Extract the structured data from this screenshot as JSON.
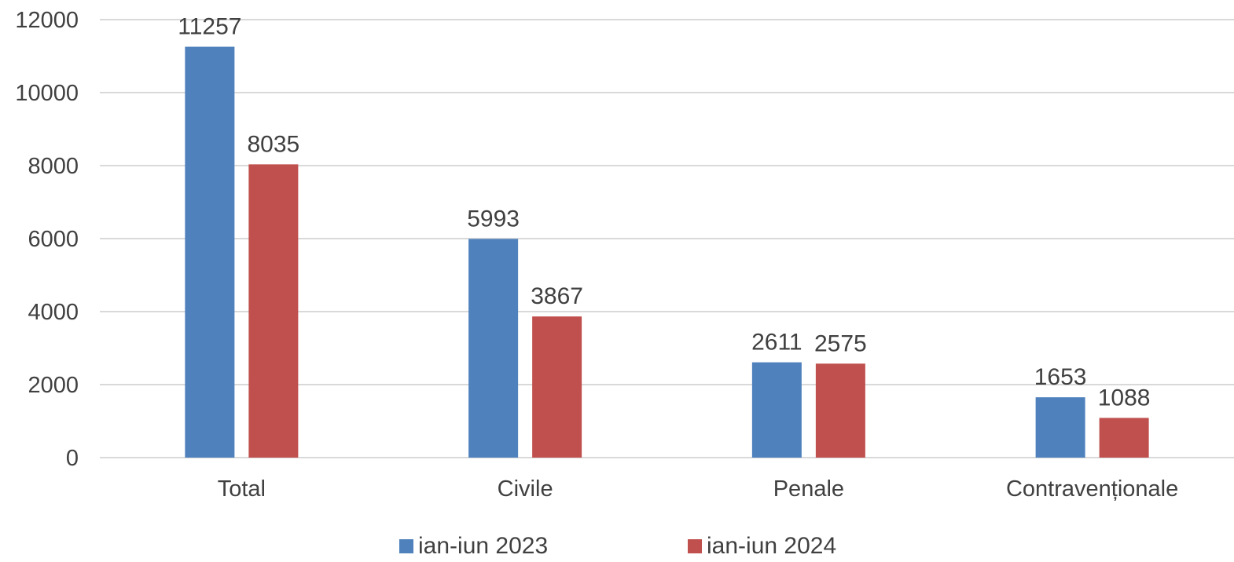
{
  "chart_data": {
    "type": "bar",
    "categories": [
      "Total",
      "Civile",
      "Penale",
      "Contravenționale"
    ],
    "series": [
      {
        "name": "ian-iun 2023",
        "values": [
          11257,
          5993,
          2611,
          1653
        ],
        "color": "#4F81BD"
      },
      {
        "name": "ian-iun 2024",
        "values": [
          8035,
          3867,
          2575,
          1088
        ],
        "color": "#C0504D"
      }
    ],
    "title": "",
    "xlabel": "",
    "ylabel": "",
    "ylim": [
      0,
      12000
    ],
    "yticks": [
      "0",
      "2000",
      "4000",
      "6000",
      "8000",
      "10000",
      "12000"
    ],
    "grid": true,
    "legend_position": "bottom"
  }
}
